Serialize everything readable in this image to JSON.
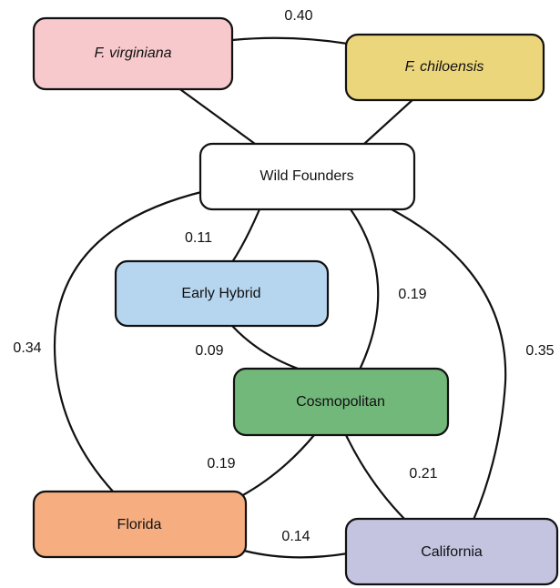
{
  "nodes": [
    {
      "label": "F. virginiana"
    },
    {
      "label": "F. chiloensis"
    },
    {
      "label": "Wild Founders"
    },
    {
      "label": "Early Hybrid"
    },
    {
      "label": "Cosmopolitan"
    },
    {
      "label": "Florida"
    },
    {
      "label": "California"
    }
  ],
  "edges": [
    {
      "label": "0.40"
    },
    {
      "label": "0.11"
    },
    {
      "label": "0.19"
    },
    {
      "label": "0.34"
    },
    {
      "label": "0.35"
    },
    {
      "label": "0.09"
    },
    {
      "label": "0.19"
    },
    {
      "label": "0.21"
    },
    {
      "label": "0.14"
    }
  ]
}
